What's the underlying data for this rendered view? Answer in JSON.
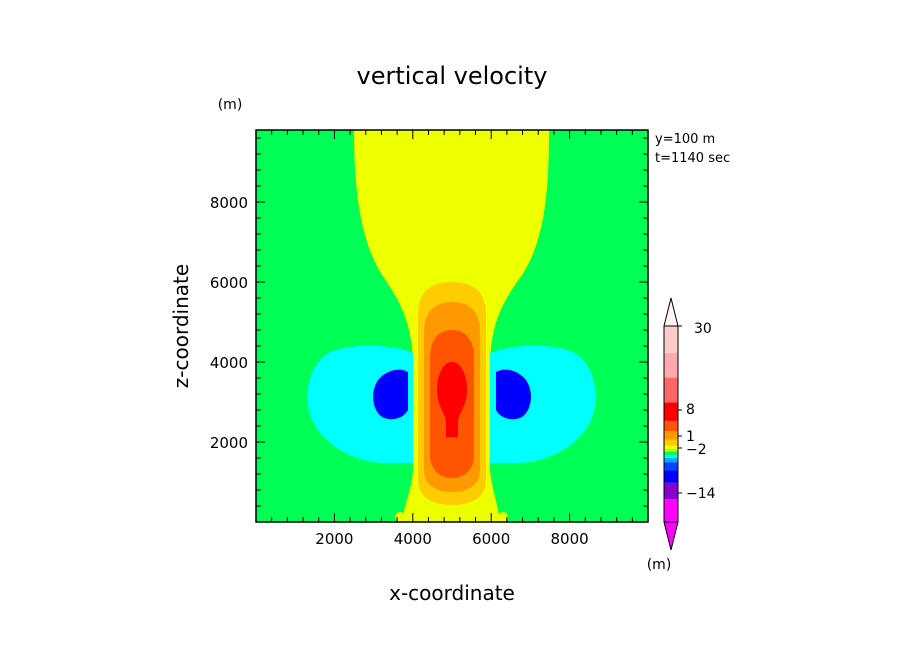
{
  "chart_data": {
    "type": "contour",
    "title": "vertical velocity",
    "xlabel": "x-coordinate",
    "ylabel": "z-coordinate",
    "xunit": "(m)",
    "yunit": "(m)",
    "xlim": [
      0,
      10000
    ],
    "ylim": [
      0,
      9800
    ],
    "xticks": [
      2000,
      4000,
      6000,
      8000
    ],
    "yticks": [
      2000,
      4000,
      6000,
      8000
    ],
    "info_lines": [
      "y=100 m",
      "t=1140 sec"
    ],
    "colorbar": {
      "unit": "(m)",
      "labels": [
        "30",
        "8",
        "1",
        "−2",
        "−14"
      ],
      "levels": [
        {
          "color": "#ff00ff"
        },
        {
          "color": "#8800cc"
        },
        {
          "color": "#0000ff"
        },
        {
          "color": "#0044ff"
        },
        {
          "color": "#00aaff"
        },
        {
          "color": "#00ffff"
        },
        {
          "color": "#00ff55"
        },
        {
          "color": "#aaff00"
        },
        {
          "color": "#eeff00"
        },
        {
          "color": "#ffcc00"
        },
        {
          "color": "#ff9900"
        },
        {
          "color": "#ff5500"
        },
        {
          "color": "#ff0000"
        },
        {
          "color": "#ff6666"
        },
        {
          "color": "#ffaaaa"
        },
        {
          "color": "#ffcccc"
        }
      ]
    },
    "field_colors": {
      "background": "#00ff55",
      "updraft_plume": "#eeff00",
      "updraft_1": "#ffcc00",
      "updraft_2": "#ff9900",
      "updraft_3": "#ff5500",
      "updraft_core": "#ff0000",
      "downdraft_weak": "#00ffff",
      "downdraft_strong": "#0000ff"
    }
  }
}
